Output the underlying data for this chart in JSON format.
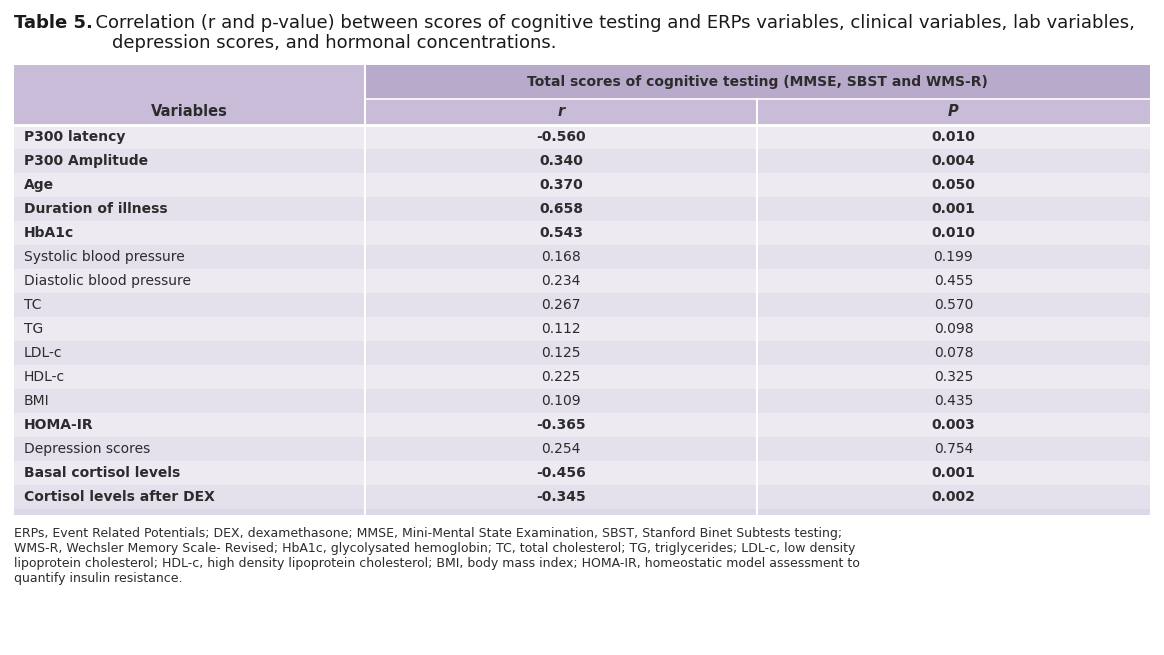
{
  "title_bold": "Table 5.",
  "title_rest": "  Correlation (r and p-value) between scores of cognitive testing and ERPs variables, clinical variables, lab variables,",
  "title_line2": "        depression scores, and hormonal concentrations.",
  "header_top": "Total scores of cognitive testing (MMSE, SBST and WMS-R)",
  "header_col1": "Variables",
  "header_col2": "r",
  "header_col3": "P",
  "rows": [
    {
      "variable": "P300 latency",
      "r": "-0.560",
      "p": "0.010",
      "bold": true
    },
    {
      "variable": "P300 Amplitude",
      "r": "0.340",
      "p": "0.004",
      "bold": true
    },
    {
      "variable": "Age",
      "r": "0.370",
      "p": "0.050",
      "bold": true
    },
    {
      "variable": "Duration of illness",
      "r": "0.658",
      "p": "0.001",
      "bold": true
    },
    {
      "variable": "HbA1c",
      "r": "0.543",
      "p": "0.010",
      "bold": true
    },
    {
      "variable": "Systolic blood pressure",
      "r": "0.168",
      "p": "0.199",
      "bold": false
    },
    {
      "variable": "Diastolic blood pressure",
      "r": "0.234",
      "p": "0.455",
      "bold": false
    },
    {
      "variable": "TC",
      "r": "0.267",
      "p": "0.570",
      "bold": false
    },
    {
      "variable": "TG",
      "r": "0.112",
      "p": "0.098",
      "bold": false
    },
    {
      "variable": "LDL-c",
      "r": "0.125",
      "p": "0.078",
      "bold": false
    },
    {
      "variable": "HDL-c",
      "r": "0.225",
      "p": "0.325",
      "bold": false
    },
    {
      "variable": "BMI",
      "r": "0.109",
      "p": "0.435",
      "bold": false
    },
    {
      "variable": "HOMA-IR",
      "r": "-0.365",
      "p": "0.003",
      "bold": true
    },
    {
      "variable": "Depression scores",
      "r": "0.254",
      "p": "0.754",
      "bold": false
    },
    {
      "variable": "Basal cortisol levels",
      "r": "-0.456",
      "p": "0.001",
      "bold": true
    },
    {
      "variable": "Cortisol levels after DEX",
      "r": "-0.345",
      "p": "0.002",
      "bold": true
    }
  ],
  "footnote_lines": [
    "ERPs, Event Related Potentials; DEX, dexamethasone; MMSE, Mini-Mental State Examination, SBST, Stanford Binet Subtests testing;",
    "WMS-R, Wechsler Memory Scale- Revised; HbA1c, glycolysated hemoglobin; TC, total cholesterol; TG, triglycerides; LDL-c, low density",
    "lipoprotein cholesterol; HDL-c, high density lipoprotein cholesterol; BMI, body mass index; HOMA-IR, homeostatic model assessment to",
    "quantify insulin resistance."
  ],
  "color_header_purple_light": "#c8bcd8",
  "color_header_purple_dark": "#b8aacb",
  "color_row_odd": "#edeaf2",
  "color_row_even": "#e4e0ec",
  "color_table_outer": "#ddd8e8",
  "color_text_dark": "#2c2c2c",
  "color_text_title": "#1a1a1a",
  "background_color": "#ffffff",
  "title_fontsize": 13,
  "header_fontsize": 10,
  "body_fontsize": 10,
  "footnote_fontsize": 9
}
